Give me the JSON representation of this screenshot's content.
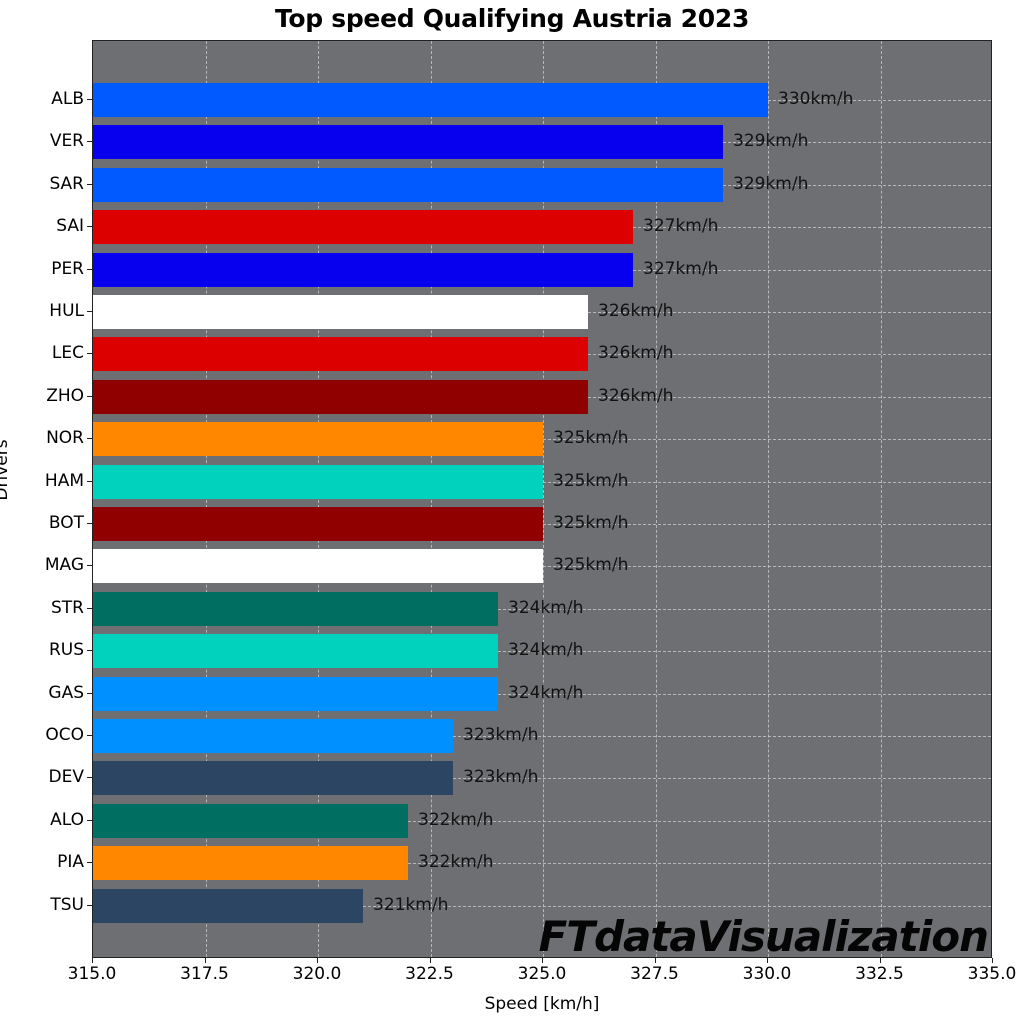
{
  "title": "Top speed Qualifying Austria 2023",
  "watermark": "FTdataVisualization",
  "xaxis": {
    "label": "Speed [km/h]",
    "ticks": [
      "315.0",
      "317.5",
      "320.0",
      "322.5",
      "325.0",
      "327.5",
      "330.0",
      "332.5",
      "335.0"
    ]
  },
  "yaxis": {
    "label": "Drivers"
  },
  "colors": {
    "plot_bg": "#6d6f73",
    "grid": "#c9c9c9"
  },
  "chart_data": {
    "type": "bar",
    "orientation": "horizontal",
    "title": "Top speed Qualifying Austria 2023",
    "xlabel": "Speed [km/h]",
    "ylabel": "Drivers",
    "xlim": [
      315.0,
      335.0
    ],
    "grid": true,
    "categories": [
      "ALB",
      "VER",
      "SAR",
      "SAI",
      "PER",
      "HUL",
      "LEC",
      "ZHO",
      "NOR",
      "HAM",
      "BOT",
      "MAG",
      "STR",
      "RUS",
      "GAS",
      "OCO",
      "DEV",
      "ALO",
      "PIA",
      "TSU"
    ],
    "values": [
      330,
      329,
      329,
      327,
      327,
      326,
      326,
      326,
      325,
      325,
      325,
      325,
      324,
      324,
      324,
      323,
      323,
      322,
      322,
      321
    ],
    "labels": [
      "330km/h",
      "329km/h",
      "329km/h",
      "327km/h",
      "327km/h",
      "326km/h",
      "326km/h",
      "326km/h",
      "325km/h",
      "325km/h",
      "325km/h",
      "325km/h",
      "324km/h",
      "324km/h",
      "324km/h",
      "323km/h",
      "323km/h",
      "322km/h",
      "322km/h",
      "321km/h"
    ],
    "bar_colors": [
      "#005aff",
      "#0600ef",
      "#005aff",
      "#dc0000",
      "#0600ef",
      "#ffffff",
      "#dc0000",
      "#900000",
      "#ff8700",
      "#00d2be",
      "#900000",
      "#ffffff",
      "#006f62",
      "#00d2be",
      "#0090ff",
      "#0090ff",
      "#2b4562",
      "#006f62",
      "#ff8700",
      "#2b4562"
    ],
    "annotations": [
      "FTdataVisualization"
    ]
  }
}
